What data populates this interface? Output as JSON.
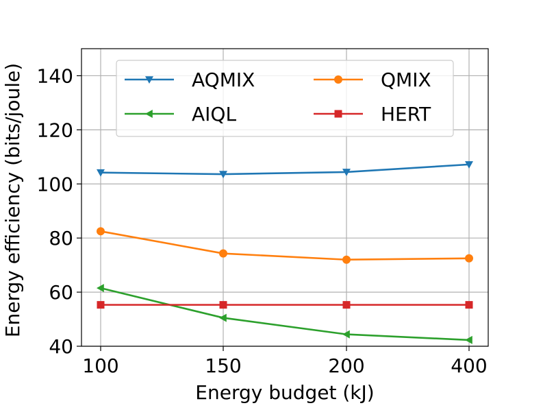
{
  "chart_data": {
    "type": "line",
    "title": "",
    "xlabel": "Energy budget (kJ)",
    "ylabel": "Energy efficiency (bits/joule)",
    "categories": [
      "100",
      "150",
      "200",
      "400"
    ],
    "ylim": [
      40,
      150
    ],
    "yticks": [
      "40",
      "60",
      "80",
      "100",
      "120",
      "140"
    ],
    "grid": true,
    "legend_position": "top",
    "legend_columns": 2,
    "series": [
      {
        "name": "AQMIX",
        "values": [
          104.2,
          103.6,
          104.4,
          107.2
        ],
        "color": "#1f77b4",
        "marker": "triangle-down"
      },
      {
        "name": "QMIX",
        "values": [
          82.5,
          74.3,
          72.0,
          72.5
        ],
        "color": "#ff7f0e",
        "marker": "circle"
      },
      {
        "name": "AIQL",
        "values": [
          61.5,
          50.5,
          44.4,
          42.3
        ],
        "color": "#2ca02c",
        "marker": "triangle-left"
      },
      {
        "name": "HERT",
        "values": [
          55.3,
          55.3,
          55.3,
          55.3
        ],
        "color": "#d62728",
        "marker": "square"
      }
    ]
  }
}
